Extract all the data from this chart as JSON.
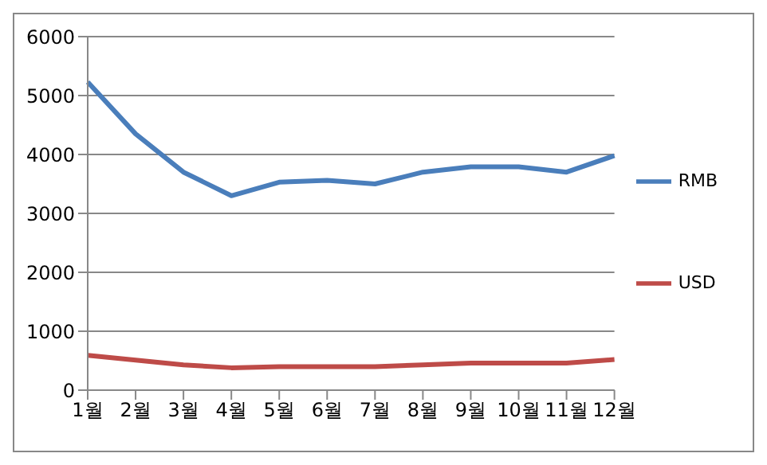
{
  "chart_data": {
    "type": "line",
    "categories": [
      "1월",
      "2월",
      "3월",
      "4월",
      "5월",
      "6월",
      "7월",
      "8월",
      "9월",
      "10월",
      "11월",
      "12월"
    ],
    "series": [
      {
        "name": "RMB",
        "color": "#4a7ebb",
        "values": [
          5230,
          4350,
          3700,
          3300,
          3530,
          3560,
          3500,
          3700,
          3790,
          3790,
          3700,
          3980
        ]
      },
      {
        "name": "USD",
        "color": "#be4b48",
        "values": [
          590,
          510,
          430,
          380,
          400,
          400,
          400,
          430,
          460,
          460,
          460,
          520
        ]
      }
    ],
    "ylim": [
      0,
      6000
    ],
    "yticks": [
      0,
      1000,
      2000,
      3000,
      4000,
      5000,
      6000
    ],
    "grid": "y",
    "legend": "right",
    "marker": "none",
    "line_style": "solid"
  }
}
